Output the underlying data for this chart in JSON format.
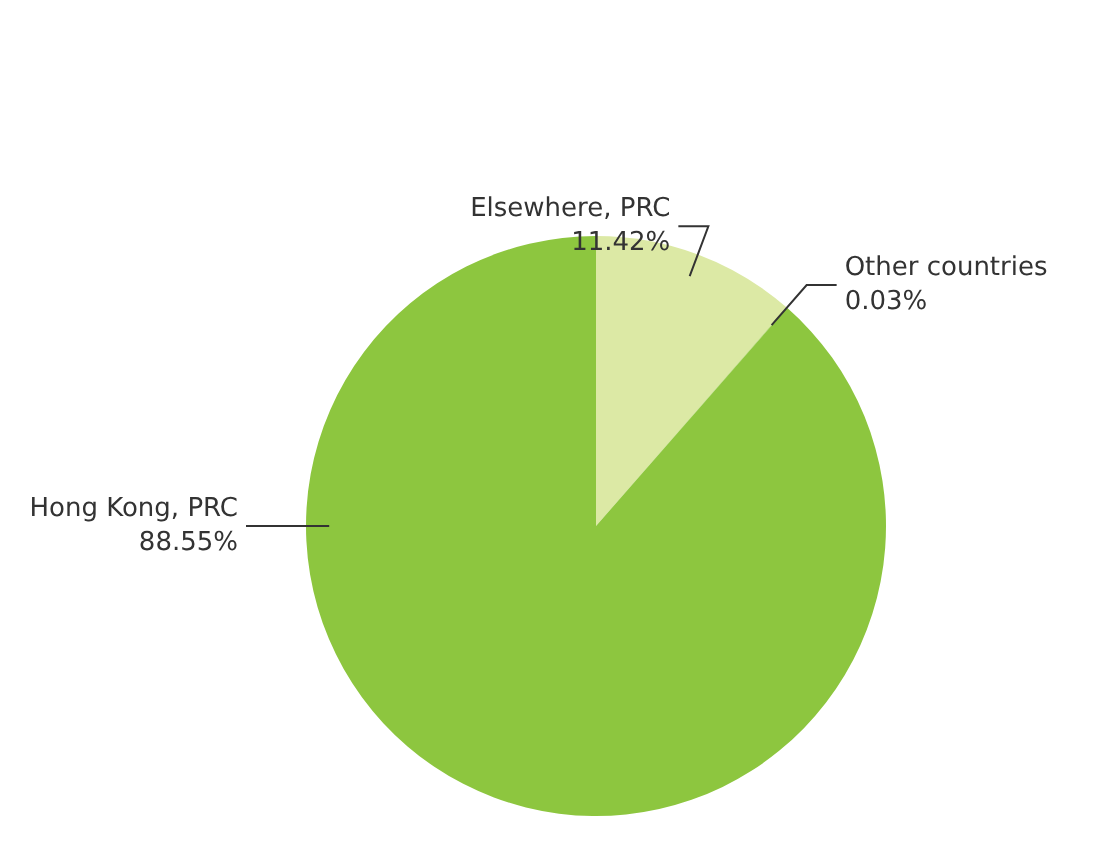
{
  "chart_data": {
    "type": "pie",
    "categories": [
      "Elsewhere, PRC",
      "Other countries",
      "Hong Kong, PRC"
    ],
    "values": [
      11.42,
      0.03,
      88.55
    ],
    "value_labels": [
      "11.42%",
      "0.03%",
      "88.55%"
    ],
    "colors": [
      "#dce9a5",
      "#a6d25a",
      "#8dc63f"
    ]
  }
}
